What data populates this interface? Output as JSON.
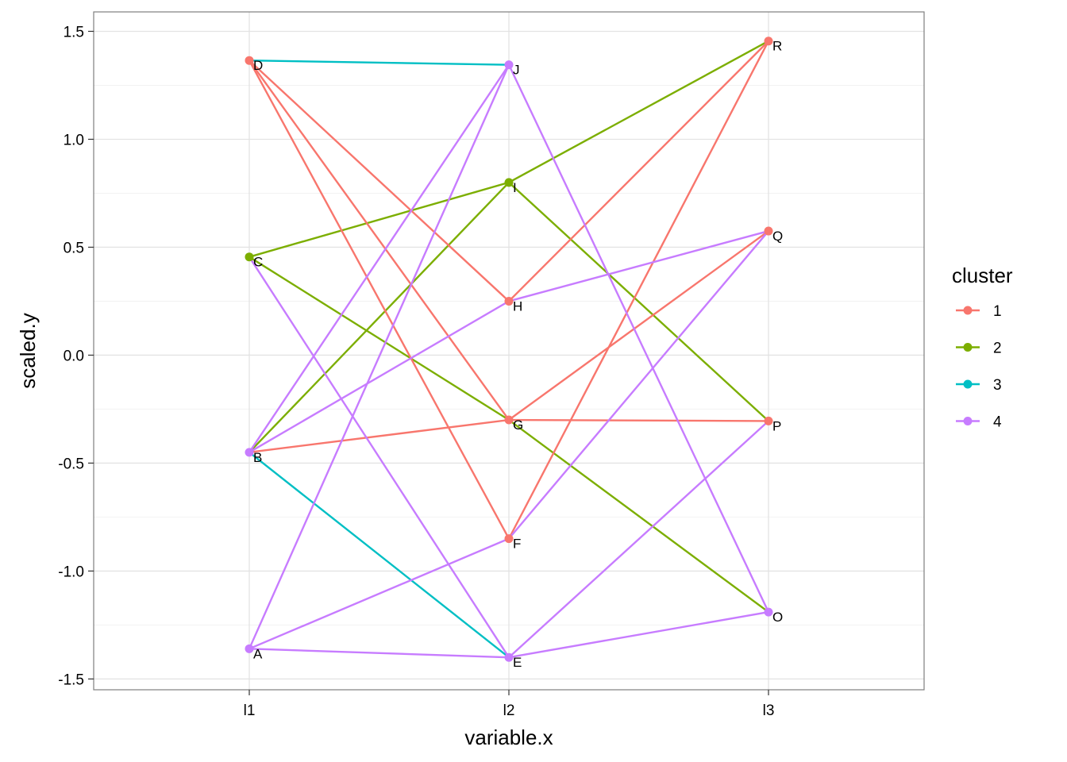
{
  "chart_data": {
    "type": "line",
    "xlabel": "variable.x",
    "ylabel": "scaled.y",
    "categories": [
      "l1",
      "l2",
      "l3"
    ],
    "ylim": [
      -1.55,
      1.59
    ],
    "yticks": [
      -1.5,
      -1.0,
      -0.5,
      0.0,
      0.5,
      1.0,
      1.5
    ],
    "ytick_labels": [
      "-1.5",
      "-1.0",
      "-0.5",
      "0.0",
      "0.5",
      "1.0",
      "1.5"
    ],
    "grid": true,
    "legend": {
      "title": "cluster",
      "position": "right",
      "items": [
        {
          "label": "1",
          "color": "#F8766D"
        },
        {
          "label": "2",
          "color": "#7CAE00"
        },
        {
          "label": "3",
          "color": "#00BFC4"
        },
        {
          "label": "4",
          "color": "#C77CFF"
        }
      ]
    },
    "points": [
      {
        "label": "A",
        "x": "l1",
        "y": -1.36
      },
      {
        "label": "B",
        "x": "l1",
        "y": -0.45
      },
      {
        "label": "C",
        "x": "l1",
        "y": 0.455
      },
      {
        "label": "D",
        "x": "l1",
        "y": 1.365
      },
      {
        "label": "E",
        "x": "l2",
        "y": -1.4
      },
      {
        "label": "F",
        "x": "l2",
        "y": -0.85
      },
      {
        "label": "G",
        "x": "l2",
        "y": -0.3
      },
      {
        "label": "H",
        "x": "l2",
        "y": 0.25
      },
      {
        "label": "I",
        "x": "l2",
        "y": 0.8
      },
      {
        "label": "J",
        "x": "l2",
        "y": 1.345
      },
      {
        "label": "O",
        "x": "l3",
        "y": -1.19
      },
      {
        "label": "P",
        "x": "l3",
        "y": -0.305
      },
      {
        "label": "Q",
        "x": "l3",
        "y": 0.575
      },
      {
        "label": "R",
        "x": "l3",
        "y": 1.455
      }
    ],
    "segments": [
      {
        "from": "D",
        "to": "J",
        "cluster": "3"
      },
      {
        "from": "B",
        "to": "E",
        "cluster": "3"
      },
      {
        "from": "C",
        "to": "I",
        "cluster": "2"
      },
      {
        "from": "C",
        "to": "G",
        "cluster": "2"
      },
      {
        "from": "B",
        "to": "I",
        "cluster": "2"
      },
      {
        "from": "I",
        "to": "R",
        "cluster": "2"
      },
      {
        "from": "I",
        "to": "P",
        "cluster": "2"
      },
      {
        "from": "G",
        "to": "O",
        "cluster": "2"
      },
      {
        "from": "D",
        "to": "H",
        "cluster": "1"
      },
      {
        "from": "D",
        "to": "G",
        "cluster": "1"
      },
      {
        "from": "D",
        "to": "F",
        "cluster": "1"
      },
      {
        "from": "B",
        "to": "G",
        "cluster": "1"
      },
      {
        "from": "H",
        "to": "R",
        "cluster": "1"
      },
      {
        "from": "F",
        "to": "R",
        "cluster": "1"
      },
      {
        "from": "G",
        "to": "Q",
        "cluster": "1"
      },
      {
        "from": "G",
        "to": "P",
        "cluster": "1"
      },
      {
        "from": "A",
        "to": "J",
        "cluster": "4"
      },
      {
        "from": "A",
        "to": "F",
        "cluster": "4"
      },
      {
        "from": "A",
        "to": "E",
        "cluster": "4"
      },
      {
        "from": "B",
        "to": "J",
        "cluster": "4"
      },
      {
        "from": "B",
        "to": "H",
        "cluster": "4"
      },
      {
        "from": "C",
        "to": "E",
        "cluster": "4"
      },
      {
        "from": "J",
        "to": "O",
        "cluster": "4"
      },
      {
        "from": "H",
        "to": "Q",
        "cluster": "4"
      },
      {
        "from": "F",
        "to": "Q",
        "cluster": "4"
      },
      {
        "from": "E",
        "to": "P",
        "cluster": "4"
      },
      {
        "from": "E",
        "to": "O",
        "cluster": "4"
      }
    ],
    "point_colors": {
      "A": "#C77CFF",
      "B": "#C77CFF",
      "C": "#7CAE00",
      "D": "#F8766D",
      "E": "#C77CFF",
      "F": "#F8766D",
      "G": "#F8766D",
      "H": "#F8766D",
      "I": "#7CAE00",
      "J": "#C77CFF",
      "O": "#C77CFF",
      "P": "#F8766D",
      "Q": "#F8766D",
      "R": "#F8766D"
    }
  }
}
